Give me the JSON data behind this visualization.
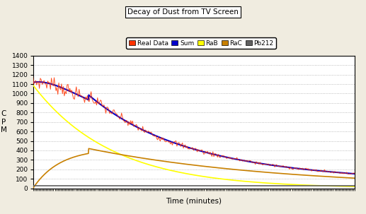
{
  "title": "Decay of Dust from TV Screen",
  "xlabel": "Time (minutes)",
  "ylabel": "C\nP\nM",
  "ylim": [
    0,
    1400
  ],
  "xlim": [
    0,
    220
  ],
  "yticks": [
    0,
    100,
    200,
    300,
    400,
    500,
    600,
    700,
    800,
    900,
    1000,
    1100,
    1200,
    1300,
    1400
  ],
  "fig_color": "#f0ece0",
  "plot_bg": "#ffffff",
  "RaB_color": "#ffff00",
  "RaC_color": "#c88000",
  "Pb212_color": "#606060",
  "Sum_color": "#0000cc",
  "RealData_color": "#ff3300",
  "t_max": 220,
  "RaB_A0": 1090,
  "RaB_lambda": 0.0186,
  "RaC_peak_time": 38,
  "RaC_A0": 420,
  "RaC_lambda_rise": 0.055,
  "RaC_lambda_fall": 0.0075,
  "Pb212_A0": 28,
  "Pb212_lambda": 8e-05,
  "noise_seed": 7,
  "noise_amp": 30,
  "n_smooth": 1000,
  "n_data": 350
}
